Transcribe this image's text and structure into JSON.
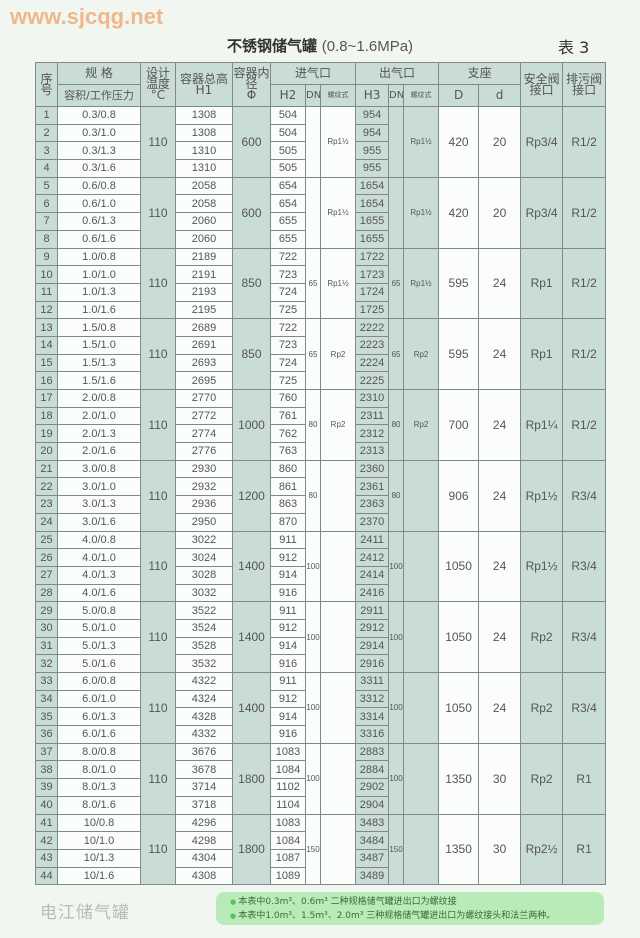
{
  "header": {
    "title_cn": "不锈钢储气罐",
    "title_range": "(0.8~1.6MPa)",
    "table_no": "表 3"
  },
  "table": {
    "headers": {
      "seq": "序号",
      "spec": "规 格",
      "spec_sub": "容积/工作压力",
      "temp": "设计温度",
      "temp_unit": "°C",
      "h1": "容器总高",
      "h1_sub": "H1",
      "dia": "容器内径",
      "dia_sub": "Φ",
      "inlet": "进气口",
      "outlet": "出气口",
      "h2": "H2",
      "h3": "H3",
      "dn": "DN",
      "thread": "螺纹式",
      "support": "支座",
      "D": "D",
      "d": "d",
      "safety": "安全阀接口",
      "drain": "排污阀接口"
    },
    "groups": [
      {
        "temp": "110",
        "dia": "600",
        "in_dn": "",
        "in_thread": "Rp1½",
        "out_dn": "",
        "out_thread": "Rp1½",
        "D": "420",
        "d": "20",
        "safety": "Rp3/4",
        "drain": "R1/2",
        "rows": [
          {
            "seq": "1",
            "spec": "0.3/0.8",
            "h1": "1308",
            "h2": "504",
            "h3": "954"
          },
          {
            "seq": "2",
            "spec": "0.3/1.0",
            "h1": "1308",
            "h2": "504",
            "h3": "954"
          },
          {
            "seq": "3",
            "spec": "0.3/1.3",
            "h1": "1310",
            "h2": "505",
            "h3": "955"
          },
          {
            "seq": "4",
            "spec": "0.3/1.6",
            "h1": "1310",
            "h2": "505",
            "h3": "955"
          }
        ]
      },
      {
        "temp": "110",
        "dia": "600",
        "in_dn": "",
        "in_thread": "Rp1½",
        "out_dn": "",
        "out_thread": "Rp1½",
        "D": "420",
        "d": "20",
        "safety": "Rp3/4",
        "drain": "R1/2",
        "rows": [
          {
            "seq": "5",
            "spec": "0.6/0.8",
            "h1": "2058",
            "h2": "654",
            "h3": "1654"
          },
          {
            "seq": "6",
            "spec": "0.6/1.0",
            "h1": "2058",
            "h2": "654",
            "h3": "1654"
          },
          {
            "seq": "7",
            "spec": "0.6/1.3",
            "h1": "2060",
            "h2": "655",
            "h3": "1655"
          },
          {
            "seq": "8",
            "spec": "0.6/1.6",
            "h1": "2060",
            "h2": "655",
            "h3": "1655"
          }
        ]
      },
      {
        "temp": "110",
        "dia": "850",
        "in_dn": "65",
        "in_thread": "Rp1½",
        "out_dn": "65",
        "out_thread": "Rp1½",
        "D": "595",
        "d": "24",
        "safety": "Rp1",
        "drain": "R1/2",
        "rows": [
          {
            "seq": "9",
            "spec": "1.0/0.8",
            "h1": "2189",
            "h2": "722",
            "h3": "1722"
          },
          {
            "seq": "10",
            "spec": "1.0/1.0",
            "h1": "2191",
            "h2": "723",
            "h3": "1723"
          },
          {
            "seq": "11",
            "spec": "1.0/1.3",
            "h1": "2193",
            "h2": "724",
            "h3": "1724"
          },
          {
            "seq": "12",
            "spec": "1.0/1.6",
            "h1": "2195",
            "h2": "725",
            "h3": "1725"
          }
        ]
      },
      {
        "temp": "110",
        "dia": "850",
        "in_dn": "65",
        "in_thread": "Rp2",
        "out_dn": "65",
        "out_thread": "Rp2",
        "D": "595",
        "d": "24",
        "safety": "Rp1",
        "drain": "R1/2",
        "rows": [
          {
            "seq": "13",
            "spec": "1.5/0.8",
            "h1": "2689",
            "h2": "722",
            "h3": "2222"
          },
          {
            "seq": "14",
            "spec": "1.5/1.0",
            "h1": "2691",
            "h2": "723",
            "h3": "2223"
          },
          {
            "seq": "15",
            "spec": "1.5/1.3",
            "h1": "2693",
            "h2": "724",
            "h3": "2224"
          },
          {
            "seq": "16",
            "spec": "1.5/1.6",
            "h1": "2695",
            "h2": "725",
            "h3": "2225"
          }
        ]
      },
      {
        "temp": "110",
        "dia": "1000",
        "in_dn": "80",
        "in_thread": "Rp2",
        "out_dn": "80",
        "out_thread": "Rp2",
        "D": "700",
        "d": "24",
        "safety": "Rp1¼",
        "drain": "R1/2",
        "rows": [
          {
            "seq": "17",
            "spec": "2.0/0.8",
            "h1": "2770",
            "h2": "760",
            "h3": "2310"
          },
          {
            "seq": "18",
            "spec": "2.0/1.0",
            "h1": "2772",
            "h2": "761",
            "h3": "2311"
          },
          {
            "seq": "19",
            "spec": "2.0/1.3",
            "h1": "2774",
            "h2": "762",
            "h3": "2312"
          },
          {
            "seq": "20",
            "spec": "2.0/1.6",
            "h1": "2776",
            "h2": "763",
            "h3": "2313"
          }
        ]
      },
      {
        "temp": "110",
        "dia": "1200",
        "in_dn": "80",
        "in_thread": "",
        "out_dn": "80",
        "out_thread": "",
        "D": "906",
        "d": "24",
        "safety": "Rp1½",
        "drain": "R3/4",
        "rows": [
          {
            "seq": "21",
            "spec": "3.0/0.8",
            "h1": "2930",
            "h2": "860",
            "h3": "2360"
          },
          {
            "seq": "22",
            "spec": "3.0/1.0",
            "h1": "2932",
            "h2": "861",
            "h3": "2361"
          },
          {
            "seq": "23",
            "spec": "3.0/1.3",
            "h1": "2936",
            "h2": "863",
            "h3": "2363"
          },
          {
            "seq": "24",
            "spec": "3.0/1.6",
            "h1": "2950",
            "h2": "870",
            "h3": "2370"
          }
        ]
      },
      {
        "temp": "110",
        "dia": "1400",
        "in_dn": "100",
        "in_thread": "",
        "out_dn": "100",
        "out_thread": "",
        "D": "1050",
        "d": "24",
        "safety": "Rp1½",
        "drain": "R3/4",
        "rows": [
          {
            "seq": "25",
            "spec": "4.0/0.8",
            "h1": "3022",
            "h2": "911",
            "h3": "2411"
          },
          {
            "seq": "26",
            "spec": "4.0/1.0",
            "h1": "3024",
            "h2": "912",
            "h3": "2412"
          },
          {
            "seq": "27",
            "spec": "4.0/1.3",
            "h1": "3028",
            "h2": "914",
            "h3": "2414"
          },
          {
            "seq": "28",
            "spec": "4.0/1.6",
            "h1": "3032",
            "h2": "916",
            "h3": "2416"
          }
        ]
      },
      {
        "temp": "110",
        "dia": "1400",
        "in_dn": "100",
        "in_thread": "",
        "out_dn": "100",
        "out_thread": "",
        "D": "1050",
        "d": "24",
        "safety": "Rp2",
        "drain": "R3/4",
        "rows": [
          {
            "seq": "29",
            "spec": "5.0/0.8",
            "h1": "3522",
            "h2": "911",
            "h3": "2911"
          },
          {
            "seq": "30",
            "spec": "5.0/1.0",
            "h1": "3524",
            "h2": "912",
            "h3": "2912"
          },
          {
            "seq": "31",
            "spec": "5.0/1.3",
            "h1": "3528",
            "h2": "914",
            "h3": "2914"
          },
          {
            "seq": "32",
            "spec": "5.0/1.6",
            "h1": "3532",
            "h2": "916",
            "h3": "2916"
          }
        ]
      },
      {
        "temp": "110",
        "dia": "1400",
        "in_dn": "100",
        "in_thread": "",
        "out_dn": "100",
        "out_thread": "",
        "D": "1050",
        "d": "24",
        "safety": "Rp2",
        "drain": "R3/4",
        "rows": [
          {
            "seq": "33",
            "spec": "6.0/0.8",
            "h1": "4322",
            "h2": "911",
            "h3": "3311"
          },
          {
            "seq": "34",
            "spec": "6.0/1.0",
            "h1": "4324",
            "h2": "912",
            "h3": "3312"
          },
          {
            "seq": "35",
            "spec": "6.0/1.3",
            "h1": "4328",
            "h2": "914",
            "h3": "3314"
          },
          {
            "seq": "36",
            "spec": "6.0/1.6",
            "h1": "4332",
            "h2": "916",
            "h3": "3316"
          }
        ]
      },
      {
        "temp": "110",
        "dia": "1800",
        "in_dn": "100",
        "in_thread": "",
        "out_dn": "100",
        "out_thread": "",
        "D": "1350",
        "d": "30",
        "safety": "Rp2",
        "drain": "R1",
        "rows": [
          {
            "seq": "37",
            "spec": "8.0/0.8",
            "h1": "3676",
            "h2": "1083",
            "h3": "2883"
          },
          {
            "seq": "38",
            "spec": "8.0/1.0",
            "h1": "3678",
            "h2": "1084",
            "h3": "2884"
          },
          {
            "seq": "39",
            "spec": "8.0/1.3",
            "h1": "3714",
            "h2": "1102",
            "h3": "2902"
          },
          {
            "seq": "40",
            "spec": "8.0/1.6",
            "h1": "3718",
            "h2": "1104",
            "h3": "2904"
          }
        ]
      },
      {
        "temp": "110",
        "dia": "1800",
        "in_dn": "150",
        "in_thread": "",
        "out_dn": "150",
        "out_thread": "",
        "D": "1350",
        "d": "30",
        "safety": "Rp2½",
        "drain": "R1",
        "rows": [
          {
            "seq": "41",
            "spec": "10/0.8",
            "h1": "4296",
            "h2": "1083",
            "h3": "3483"
          },
          {
            "seq": "42",
            "spec": "10/1.0",
            "h1": "4298",
            "h2": "1084",
            "h3": "3484"
          },
          {
            "seq": "43",
            "spec": "10/1.3",
            "h1": "4304",
            "h2": "1087",
            "h3": "3487"
          },
          {
            "seq": "44",
            "spec": "10/1.6",
            "h1": "4308",
            "h2": "1089",
            "h3": "3489"
          }
        ]
      }
    ]
  },
  "notes": [
    "本表中0.3m³、0.6m³ 二种规格储气罐进出口为螺纹接",
    "本表中1.0m³、1.5m³、2.0m³ 三种规格储气罐进出口为螺纹接头和法兰两种。"
  ],
  "watermark": {
    "account": "电江储气罐",
    "stamp": "www.sjcqg.net  0523 6116"
  },
  "colors": {
    "shade": "#c9dcd8",
    "background": "#f2f6f1",
    "note_bg": "#b9ebb9"
  }
}
